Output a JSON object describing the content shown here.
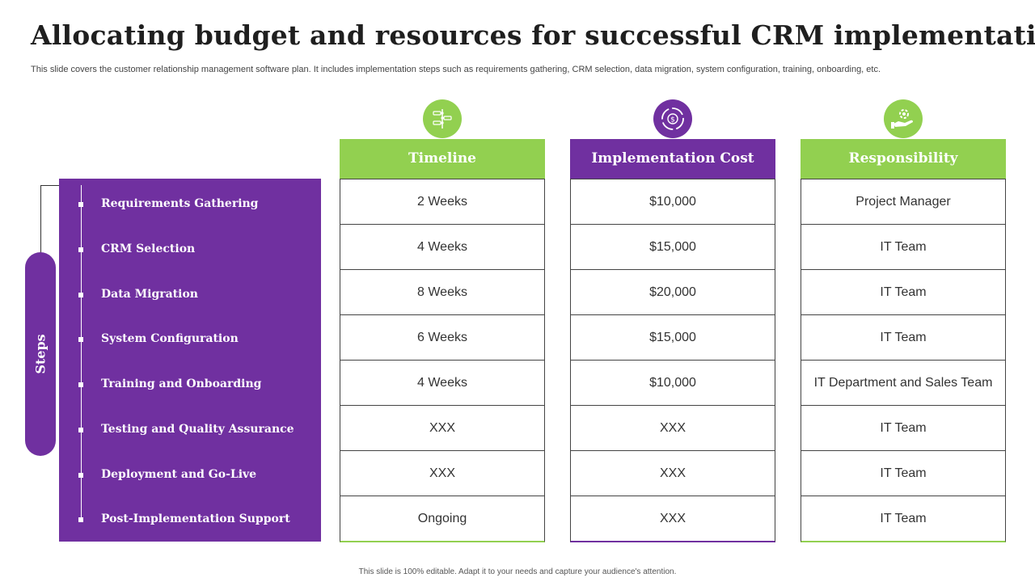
{
  "title": "Allocating budget and resources for successful CRM implementation",
  "subtitle": "This slide covers the customer relationship management software plan. It includes implementation steps such as requirements gathering, CRM selection, data migration, system configuration, training, onboarding, etc.",
  "steps": {
    "label": "Steps",
    "items": [
      "Requirements Gathering",
      "CRM Selection",
      "Data Migration",
      "System Configuration",
      "Training and Onboarding",
      "Testing and Quality  Assurance",
      "Deployment and Go-Live",
      "Post-Implementation Support"
    ]
  },
  "columns": [
    {
      "header": "Timeline",
      "icon": "timeline-icon",
      "color": "#92d050",
      "cells": [
        "2 Weeks",
        "4 Weeks",
        "8 Weeks",
        "6 Weeks",
        "4 Weeks",
        "XXX",
        "XXX",
        "Ongoing"
      ]
    },
    {
      "header": "Implementation Cost",
      "icon": "dollar-cycle-icon",
      "color": "#7030a0",
      "cells": [
        "$10,000",
        "$15,000",
        "$20,000",
        "$15,000",
        "$10,000",
        "XXX",
        "XXX",
        "XXX"
      ]
    },
    {
      "header": "Responsibility",
      "icon": "hand-gear-icon",
      "color": "#92d050",
      "cells": [
        "Project Manager",
        "IT Team",
        "IT Team",
        "IT Team",
        "IT  Department and Sales Team",
        "IT Team",
        "IT Team",
        "IT Team"
      ]
    }
  ],
  "footer": "This slide is 100% editable. Adapt it to your needs and capture your audience's attention."
}
